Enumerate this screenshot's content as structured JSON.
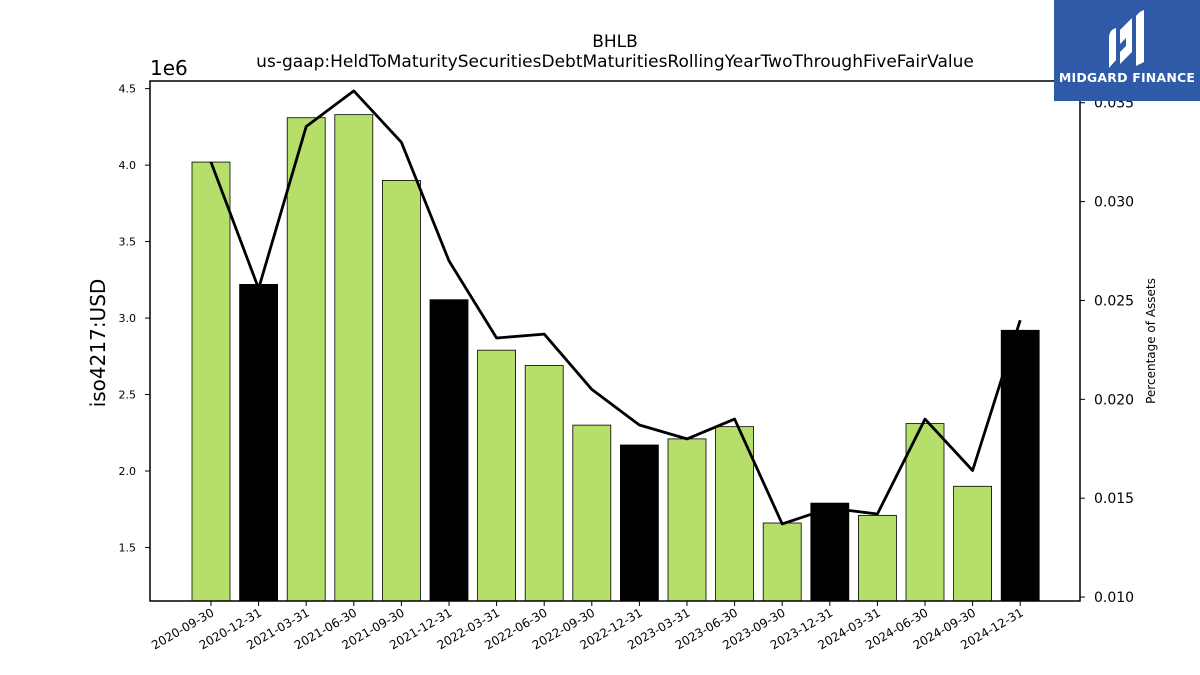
{
  "chart_data": {
    "type": "bar",
    "title": "BHLB",
    "subtitle": "us-gaap:HeldToMaturitySecuritiesDebtMaturitiesRollingYearTwoThroughFiveFairValue",
    "ylabel": "iso4217:USD",
    "y_scale_label": "1e6",
    "y2label": "Percentage of Assets",
    "ylim": [
      1150000,
      4550000
    ],
    "y2lim": [
      0.0098,
      0.0361
    ],
    "yticks": [
      "1.5",
      "2.0",
      "2.5",
      "3.0",
      "3.5",
      "4.0",
      "4.5"
    ],
    "y2ticks": [
      "0.010",
      "0.015",
      "0.020",
      "0.025",
      "0.030",
      "0.035"
    ],
    "grid": false,
    "categories": [
      "2020-09-30",
      "2020-12-31",
      "2021-03-31",
      "2021-06-30",
      "2021-09-30",
      "2021-12-31",
      "2022-03-31",
      "2022-06-30",
      "2022-09-30",
      "2022-12-31",
      "2023-03-31",
      "2023-06-30",
      "2023-09-30",
      "2023-12-31",
      "2024-03-31",
      "2024-06-30",
      "2024-09-30",
      "2024-12-31"
    ],
    "series": [
      {
        "type": "bar",
        "values": [
          4020000,
          3220000,
          4310000,
          4330000,
          3900000,
          3120000,
          2790000,
          2690000,
          2300000,
          2170000,
          2210000,
          2290000,
          1660000,
          1790000,
          1710000,
          2310000,
          1900000,
          2920000
        ],
        "colors": [
          "#b5de6b",
          "#000000",
          "#b5de6b",
          "#b5de6b",
          "#b5de6b",
          "#000000",
          "#b5de6b",
          "#b5de6b",
          "#b5de6b",
          "#000000",
          "#b5de6b",
          "#b5de6b",
          "#b5de6b",
          "#000000",
          "#b5de6b",
          "#b5de6b",
          "#b5de6b",
          "#000000"
        ]
      },
      {
        "type": "line",
        "axis": "right",
        "color": "#000000",
        "values": [
          0.032,
          0.0256,
          0.0338,
          0.0356,
          0.033,
          0.027,
          0.0231,
          0.0233,
          0.0205,
          0.0187,
          0.018,
          0.019,
          0.0137,
          0.0145,
          0.0142,
          0.019,
          0.0164,
          0.024
        ]
      }
    ]
  },
  "logo": {
    "text": "MIDGARD FINANCE",
    "color": "#2e5aa8"
  }
}
